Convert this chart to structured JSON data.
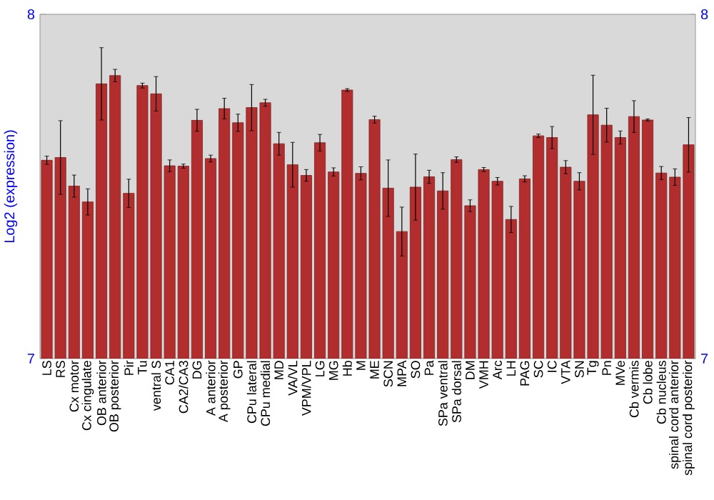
{
  "chart_data": {
    "type": "bar",
    "ylabel": "Log2 (expression)",
    "categories": [
      "LS",
      "RS",
      "Cx motor",
      "Cx cingulate",
      "OB anterior",
      "OB posterior",
      "Pir",
      "Tu",
      "ventral S",
      "CA1",
      "CA2/CA3",
      "DG",
      "A anterior",
      "A posterior",
      "GP",
      "CPu lateral",
      "CPu medial",
      "MD",
      "VA/VL",
      "VPM/VPL",
      "LG",
      "MG",
      "Hb",
      "M",
      "ME",
      "SCN",
      "MPA",
      "SO",
      "Pa",
      "SPa ventral",
      "SPa dorsal",
      "DM",
      "VMH",
      "Arc",
      "LH",
      "PAG",
      "SC",
      "IC",
      "VTA",
      "SN",
      "Tg",
      "Pn",
      "MVe",
      "Cb vermis",
      "Cb lobe",
      "Cb nucleus",
      "spinal cord anterior",
      "spinal cord posterior"
    ],
    "values": [
      7.576,
      7.584,
      7.501,
      7.455,
      7.798,
      7.822,
      7.48,
      7.793,
      7.769,
      7.56,
      7.559,
      7.692,
      7.581,
      7.726,
      7.685,
      7.729,
      7.743,
      7.624,
      7.563,
      7.532,
      7.627,
      7.542,
      7.78,
      7.538,
      7.694,
      7.495,
      7.369,
      7.498,
      7.528,
      7.487,
      7.578,
      7.444,
      7.549,
      7.515,
      7.404,
      7.522,
      7.647,
      7.642,
      7.556,
      7.515,
      7.708,
      7.678,
      7.642,
      7.703,
      7.693,
      7.539,
      7.527,
      7.621
    ],
    "errors": [
      0.012,
      0.107,
      0.032,
      0.038,
      0.105,
      0.018,
      0.041,
      0.007,
      0.05,
      0.017,
      0.006,
      0.032,
      0.01,
      0.03,
      0.025,
      0.067,
      0.01,
      0.033,
      0.065,
      0.017,
      0.024,
      0.012,
      0.004,
      0.019,
      0.01,
      0.082,
      0.071,
      0.096,
      0.019,
      0.053,
      0.008,
      0.017,
      0.006,
      0.011,
      0.038,
      0.009,
      0.005,
      0.032,
      0.019,
      0.025,
      0.115,
      0.049,
      0.019,
      0.046,
      0.003,
      0.019,
      0.024,
      0.079
    ],
    "color": "#b22e2e",
    "ylim": [
      7,
      8
    ],
    "yticks": [
      7,
      8
    ],
    "y2lim": [
      7,
      8
    ],
    "y2ticks": [
      7,
      8
    ]
  }
}
